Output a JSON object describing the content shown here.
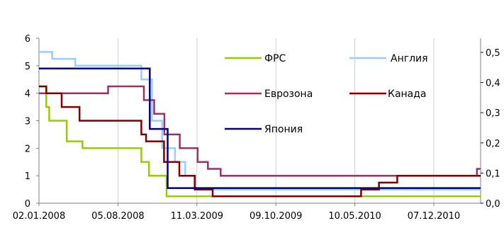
{
  "chart_data": {
    "type": "line",
    "title": "",
    "xlabel": "",
    "ylabel": "",
    "x_tick_labels": [
      "02.01.2008",
      "05.08.2008",
      "11.03.2009",
      "09.10.2009",
      "10.05.2010",
      "07.12.2010"
    ],
    "xlim": [
      "2008-01-02",
      "2011-04-24"
    ],
    "ylim": [
      0,
      6
    ],
    "y_ticks": [
      0,
      1,
      2,
      3,
      4,
      5,
      6
    ],
    "y2_ticks": [
      "0,0",
      "0,1",
      "0,2",
      "0,3",
      "0,4",
      "0,5"
    ],
    "grid": "vertical",
    "legend_position": "upper-right, inside plot",
    "series": [
      {
        "name": "ФРС",
        "color": "#99CC00",
        "points": [
          [
            "2008-01-02",
            4.25
          ],
          [
            "2008-01-22",
            3.5
          ],
          [
            "2008-01-30",
            3.0
          ],
          [
            "2008-03-18",
            2.25
          ],
          [
            "2008-04-30",
            2.0
          ],
          [
            "2008-10-08",
            1.5
          ],
          [
            "2008-10-29",
            1.0
          ],
          [
            "2008-12-16",
            0.25
          ],
          [
            "2011-04-24",
            0.25
          ]
        ]
      },
      {
        "name": "Англия",
        "color": "#99CCFF",
        "points": [
          [
            "2008-01-02",
            5.5
          ],
          [
            "2008-02-07",
            5.25
          ],
          [
            "2008-04-10",
            5.0
          ],
          [
            "2008-10-08",
            4.5
          ],
          [
            "2008-11-06",
            3.0
          ],
          [
            "2008-12-04",
            2.0
          ],
          [
            "2009-01-08",
            1.5
          ],
          [
            "2009-02-05",
            1.0
          ],
          [
            "2009-03-05",
            0.5
          ],
          [
            "2011-04-24",
            0.5
          ]
        ]
      },
      {
        "name": "Еврозона",
        "color": "#993366",
        "points": [
          [
            "2008-01-02",
            4.0
          ],
          [
            "2008-07-09",
            4.25
          ],
          [
            "2008-10-15",
            3.75
          ],
          [
            "2008-11-12",
            3.25
          ],
          [
            "2008-12-10",
            2.5
          ],
          [
            "2009-01-21",
            2.0
          ],
          [
            "2009-03-11",
            1.5
          ],
          [
            "2009-04-08",
            1.25
          ],
          [
            "2009-05-13",
            1.0
          ],
          [
            "2011-04-13",
            1.0
          ],
          [
            "2011-04-14",
            1.25
          ],
          [
            "2011-04-24",
            1.25
          ]
        ]
      },
      {
        "name": "Канада",
        "color": "#800000",
        "points": [
          [
            "2008-01-02",
            4.25
          ],
          [
            "2008-01-22",
            4.0
          ],
          [
            "2008-03-04",
            3.5
          ],
          [
            "2008-04-22",
            3.0
          ],
          [
            "2008-10-08",
            2.5
          ],
          [
            "2008-10-21",
            2.25
          ],
          [
            "2008-12-09",
            1.5
          ],
          [
            "2009-01-20",
            1.0
          ],
          [
            "2009-03-03",
            0.5
          ],
          [
            "2009-04-21",
            0.25
          ],
          [
            "2010-06-01",
            0.5
          ],
          [
            "2010-07-20",
            0.75
          ],
          [
            "2010-09-08",
            1.0
          ],
          [
            "2011-04-24",
            1.0
          ]
        ]
      },
      {
        "name": "Япония",
        "color": "#000080",
        "points": [
          [
            "2008-01-02",
            4.9
          ],
          [
            "2008-10-31",
            2.7
          ],
          [
            "2008-12-19",
            0.55
          ],
          [
            "2011-04-24",
            0.55
          ]
        ]
      }
    ]
  }
}
